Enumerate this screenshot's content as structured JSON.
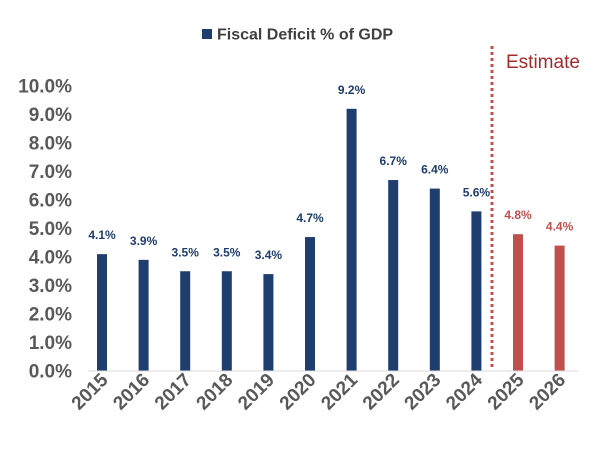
{
  "chart_data": {
    "type": "bar",
    "title": "",
    "legend": {
      "label": "Fiscal Deficit % of GDP",
      "position": "top-center"
    },
    "categories": [
      "2015",
      "2016",
      "2017",
      "2018",
      "2019",
      "2020",
      "2021",
      "2022",
      "2023",
      "2024",
      "2025",
      "2026"
    ],
    "values": [
      4.1,
      3.9,
      3.5,
      3.5,
      3.4,
      4.7,
      9.2,
      6.7,
      6.4,
      5.6,
      4.8,
      4.4
    ],
    "data_labels": [
      "4.1%",
      "3.9%",
      "3.5%",
      "3.5%",
      "3.4%",
      "4.7%",
      "9.2%",
      "6.7%",
      "6.4%",
      "5.6%",
      "4.8%",
      "4.4%"
    ],
    "estimated": [
      false,
      false,
      false,
      false,
      false,
      false,
      false,
      false,
      false,
      false,
      true,
      true
    ],
    "ylim": [
      0,
      10
    ],
    "yticks": [
      0,
      1,
      2,
      3,
      4,
      5,
      6,
      7,
      8,
      9,
      10
    ],
    "ytick_labels": [
      "0.0%",
      "1.0%",
      "2.0%",
      "3.0%",
      "4.0%",
      "5.0%",
      "6.0%",
      "7.0%",
      "8.0%",
      "9.0%",
      "10.0%"
    ],
    "xlabel": "",
    "ylabel": "",
    "grid": false,
    "annotation": {
      "text": "Estimate",
      "divider_between": [
        "2024",
        "2025"
      ]
    }
  },
  "colors": {
    "actual": "#1f3d6e",
    "estimate": "#c0504d",
    "estimate_text": "#a52a2a",
    "axis": "#d9d9d9",
    "tick_text": "#595959"
  }
}
